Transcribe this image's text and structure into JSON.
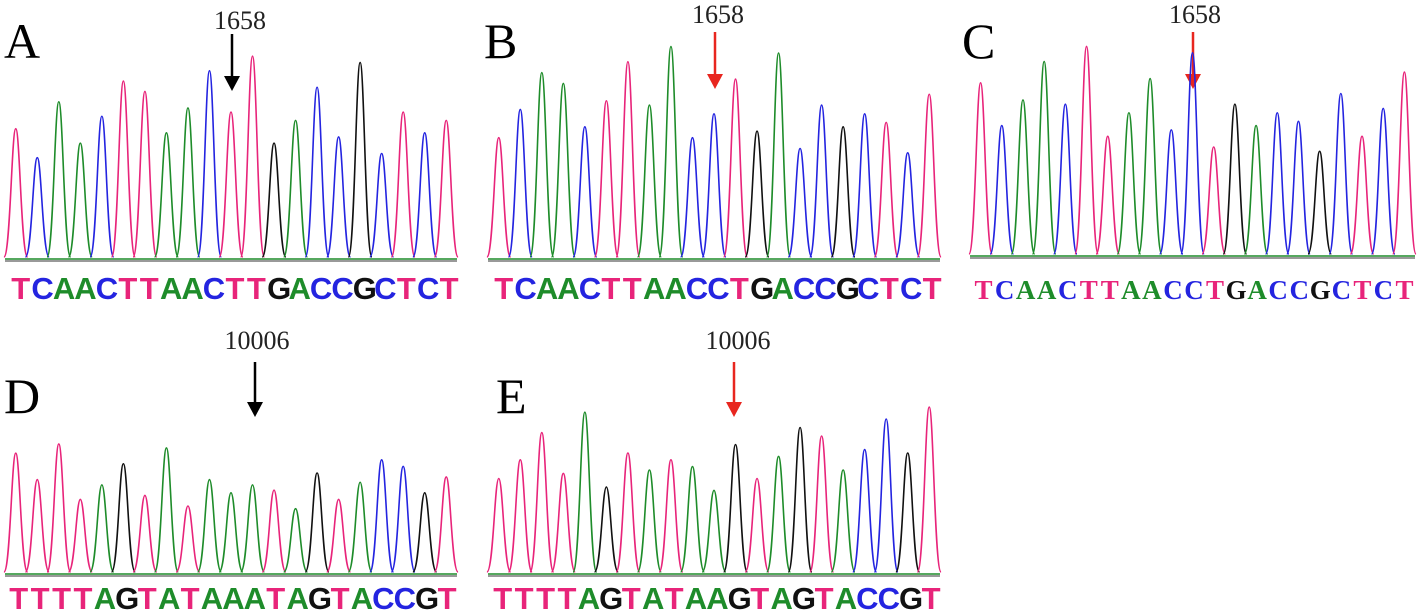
{
  "colors": {
    "T": "#e8247a",
    "C": "#2424e0",
    "A": "#1e8c2a",
    "G": "#111111",
    "arrow_black": "#000000",
    "arrow_red": "#e8261f"
  },
  "panels": [
    {
      "id": "A",
      "letter": "A",
      "position_label": "1658",
      "arrow_color": "black",
      "sequence": "TCAACTTAACTTGACCGCTCT"
    },
    {
      "id": "B",
      "letter": "B",
      "position_label": "1658",
      "arrow_color": "red",
      "sequence": "TCAACTTAACCTGACCGCTCT"
    },
    {
      "id": "C",
      "letter": "C",
      "position_label": "1658",
      "arrow_color": "red",
      "sequence": "TCAACTTAACCTGACCGCTCT"
    },
    {
      "id": "D",
      "letter": "D",
      "position_label": "10006",
      "arrow_color": "black",
      "sequence": "TTTTAGTATAAATAGTACCGT"
    },
    {
      "id": "E",
      "letter": "E",
      "position_label": "10006",
      "arrow_color": "red",
      "sequence": "TTTTAGTATAAGTAGTACCGT"
    }
  ]
}
